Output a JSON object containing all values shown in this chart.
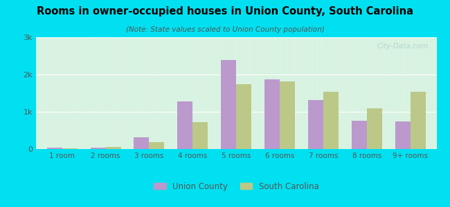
{
  "title": "Rooms in owner-occupied houses in Union County, South Carolina",
  "subtitle": "(Note: State values scaled to Union County population)",
  "categories": [
    "1 room",
    "2 rooms",
    "3 rooms",
    "4 rooms",
    "5 rooms",
    "6 rooms",
    "7 rooms",
    "8 rooms",
    "9+ rooms"
  ],
  "union_county": [
    30,
    40,
    320,
    1280,
    2380,
    1870,
    1310,
    760,
    740
  ],
  "south_carolina": [
    20,
    60,
    180,
    720,
    1750,
    1820,
    1540,
    1090,
    1540
  ],
  "union_color": "#bb99cc",
  "sc_color": "#bbc888",
  "background_outer": "#00e0f0",
  "background_plot_top": "#eafaf4",
  "background_plot_bottom": "#c8ecd0",
  "ylim": [
    0,
    3000
  ],
  "yticks": [
    0,
    1000,
    2000,
    3000
  ],
  "ytick_labels": [
    "0",
    "1k",
    "2k",
    "3k"
  ],
  "bar_width": 0.35,
  "watermark": "City-Data.com",
  "legend_union": "Union County",
  "legend_sc": "South Carolina"
}
